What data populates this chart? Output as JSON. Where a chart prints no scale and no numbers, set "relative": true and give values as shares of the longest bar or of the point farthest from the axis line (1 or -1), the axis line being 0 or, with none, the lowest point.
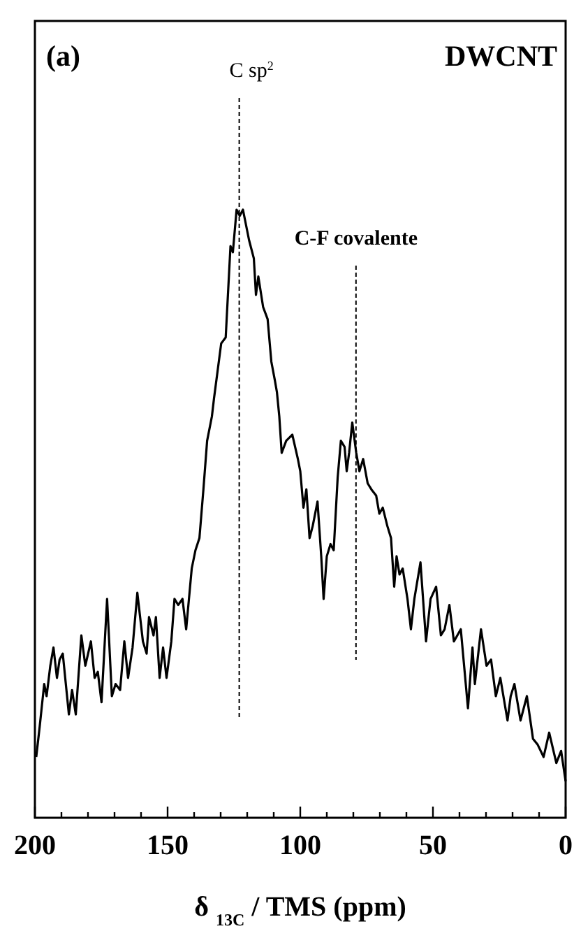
{
  "chart_data": {
    "type": "line",
    "relative": true,
    "xlabel": "δ $_{13C}$ / TMS (ppm)",
    "xlim": [
      200,
      0
    ],
    "xticks": [
      200,
      {
        "value": 190,
        "label": null
      },
      {
        "value": 180,
        "label": null
      },
      {
        "value": 170,
        "label": null
      },
      {
        "value": 160,
        "label": null
      },
      150,
      {
        "value": 140,
        "label": null
      },
      {
        "value": 130,
        "label": null
      },
      {
        "value": 120,
        "label": null
      },
      {
        "value": 110,
        "label": null
      },
      100,
      {
        "value": 90,
        "label": null
      },
      {
        "value": 80,
        "label": null
      },
      {
        "value": 70,
        "label": null
      },
      {
        "value": 60,
        "label": null
      },
      50,
      {
        "value": 40,
        "label": null
      },
      {
        "value": 30,
        "label": null
      },
      {
        "value": 20,
        "label": null
      },
      {
        "value": 10,
        "label": null
      },
      0
    ],
    "annotations": [
      "(a)",
      "DWCNT"
    ],
    "ref_lines": [
      {
        "axis": "x",
        "value": 123,
        "label": "C sp$^{2}$",
        "line_style": "dashed"
      },
      {
        "axis": "x",
        "value": 79,
        "label": "C-F covalente",
        "line_style": "dashed"
      }
    ],
    "line_style": "solid",
    "series": [
      {
        "color": "#000000",
        "x": [
          199.5,
          198.2,
          196.5,
          195.6,
          194.2,
          193,
          191.7,
          190.7,
          189.5,
          187.2,
          186,
          184.6,
          182.5,
          181,
          178.9,
          177.5,
          176.3,
          174.9,
          172.8,
          171,
          169.6,
          167.9,
          166.3,
          164.9,
          163.2,
          161.4,
          159.3,
          157.9,
          157,
          155.3,
          154.4,
          153,
          151.7,
          150.4,
          148.6,
          147.4,
          146,
          144.4,
          143,
          140.9,
          139.5,
          138,
          136.5,
          135.1,
          133.3,
          132.5,
          129.8,
          128.1,
          126.3,
          125.4,
          124,
          122.8,
          121.6,
          119.3,
          117.5,
          116.7,
          115.8,
          114,
          112.3,
          110.9,
          109.6,
          108.8,
          107.9,
          107,
          105.3,
          103,
          100.9,
          100,
          98.8,
          97.7,
          96.5,
          95.3,
          93.5,
          92.1,
          91.2,
          90,
          88.6,
          87.4,
          85.9,
          84.7,
          83.3,
          82.5,
          81.6,
          80.4,
          78.9,
          77.7,
          76.3,
          74.6,
          73.2,
          71.4,
          70.2,
          68.9,
          67.2,
          65.8,
          64.6,
          63.7,
          62.6,
          61.4,
          59.6,
          58.3,
          57,
          54.7,
          52.6,
          50.9,
          48.8,
          47,
          45.6,
          43.8,
          42.1,
          39.5,
          36.8,
          35.1,
          34.2,
          31.9,
          29.8,
          28.1,
          26.3,
          24.6,
          21.9,
          20.7,
          19.3,
          17,
          14.6,
          12.3,
          10.5,
          8.3,
          6.2,
          3.5,
          1.7,
          0
        ],
        "values": [
          0.1,
          0.15,
          0.22,
          0.2,
          0.25,
          0.28,
          0.23,
          0.26,
          0.27,
          0.17,
          0.21,
          0.17,
          0.3,
          0.25,
          0.29,
          0.23,
          0.24,
          0.19,
          0.36,
          0.2,
          0.22,
          0.21,
          0.29,
          0.23,
          0.28,
          0.37,
          0.29,
          0.27,
          0.33,
          0.3,
          0.33,
          0.23,
          0.28,
          0.23,
          0.29,
          0.36,
          0.35,
          0.36,
          0.31,
          0.41,
          0.44,
          0.46,
          0.54,
          0.62,
          0.66,
          0.69,
          0.78,
          0.79,
          0.94,
          0.93,
          1.0,
          0.99,
          1.0,
          0.95,
          0.92,
          0.86,
          0.89,
          0.84,
          0.82,
          0.75,
          0.72,
          0.7,
          0.66,
          0.6,
          0.62,
          0.63,
          0.59,
          0.57,
          0.51,
          0.54,
          0.46,
          0.48,
          0.52,
          0.43,
          0.36,
          0.43,
          0.45,
          0.44,
          0.56,
          0.62,
          0.61,
          0.57,
          0.6,
          0.65,
          0.6,
          0.57,
          0.59,
          0.55,
          0.54,
          0.53,
          0.5,
          0.51,
          0.48,
          0.46,
          0.38,
          0.43,
          0.4,
          0.41,
          0.36,
          0.31,
          0.36,
          0.42,
          0.29,
          0.36,
          0.38,
          0.3,
          0.31,
          0.35,
          0.29,
          0.31,
          0.18,
          0.28,
          0.22,
          0.31,
          0.25,
          0.26,
          0.2,
          0.23,
          0.16,
          0.2,
          0.22,
          0.16,
          0.2,
          0.13,
          0.12,
          0.1,
          0.14,
          0.09,
          0.11,
          0.06
        ]
      }
    ]
  }
}
